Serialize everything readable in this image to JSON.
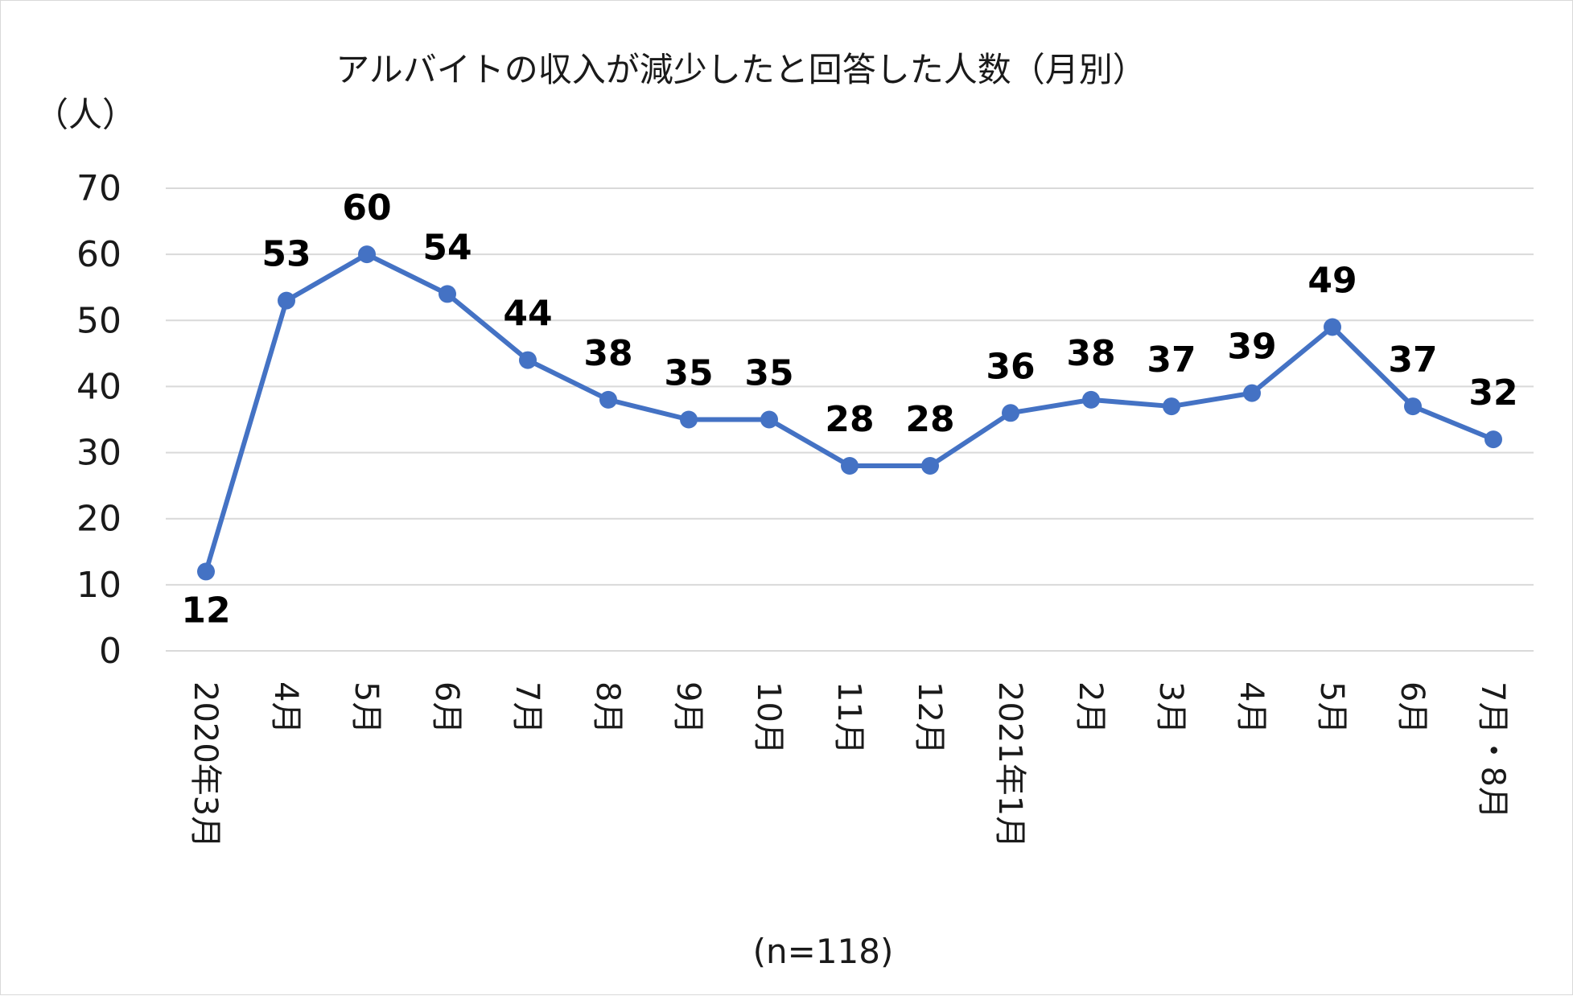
{
  "chart_data": {
    "type": "line",
    "title": "アルバイトの収入が減少したと回答した人数（月別）",
    "ylabel": "（人）",
    "xlabel": "",
    "ylim": [
      0,
      70
    ],
    "yticks": [
      0,
      10,
      20,
      30,
      40,
      50,
      60,
      70
    ],
    "grid": true,
    "legend": "none",
    "categories": [
      "2020年3月",
      "4月",
      "5月",
      "6月",
      "7月",
      "8月",
      "9月",
      "10月",
      "11月",
      "12月",
      "2021年1月",
      "2月",
      "3月",
      "4月",
      "5月",
      "6月",
      "7月・8月"
    ],
    "series": [
      {
        "values": [
          12,
          53,
          60,
          54,
          44,
          38,
          35,
          35,
          28,
          28,
          36,
          38,
          37,
          39,
          49,
          37,
          32
        ]
      }
    ],
    "data_labels": true,
    "note": "(n=118)",
    "colors": {
      "line": "#4472c4",
      "grid": "#d9d9d9",
      "text": "#1a1a1a"
    }
  }
}
